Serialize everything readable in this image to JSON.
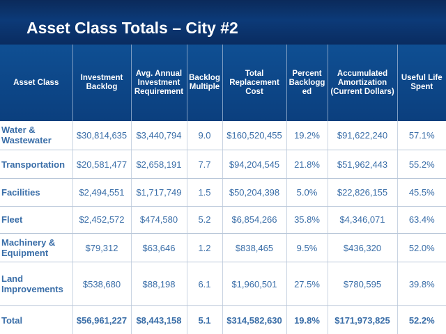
{
  "title": "Asset Class Totals – City #2",
  "table": {
    "headers": [
      "Asset Class",
      "Investment Backlog",
      "Avg. Annual Investment Requirement",
      "Backlog Multiple",
      "Total Replacement Cost",
      "Percent Backlogg ed",
      "Accumulated Amortization (Current Dollars)",
      "Useful Life Spent"
    ],
    "rows": [
      [
        "Water & Wastewater",
        "$30,814,635",
        "$3,440,794",
        "9.0",
        "$160,520,455",
        "19.2%",
        "$91,622,240",
        "57.1%"
      ],
      [
        "Transportation",
        "$20,581,477",
        "$2,658,191",
        "7.7",
        "$94,204,545",
        "21.8%",
        "$51,962,443",
        "55.2%"
      ],
      [
        "Facilities",
        "$2,494,551",
        "$1,717,749",
        "1.5",
        "$50,204,398",
        "5.0%",
        "$22,826,155",
        "45.5%"
      ],
      [
        "Fleet",
        "$2,452,572",
        "$474,580",
        "5.2",
        "$6,854,266",
        "35.8%",
        "$4,346,071",
        "63.4%"
      ],
      [
        "Machinery & Equipment",
        "$79,312",
        "$63,646",
        "1.2",
        "$838,465",
        "9.5%",
        "$436,320",
        "52.0%"
      ],
      [
        "Land Improvements",
        "$538,680",
        "$88,198",
        "6.1",
        "$1,960,501",
        "27.5%",
        "$780,595",
        "39.8%"
      ],
      [
        "Total",
        "$56,961,227",
        "$8,443,158",
        "5.1",
        "$314,582,630",
        "19.8%",
        "$171,973,825",
        "52.2%"
      ]
    ]
  }
}
